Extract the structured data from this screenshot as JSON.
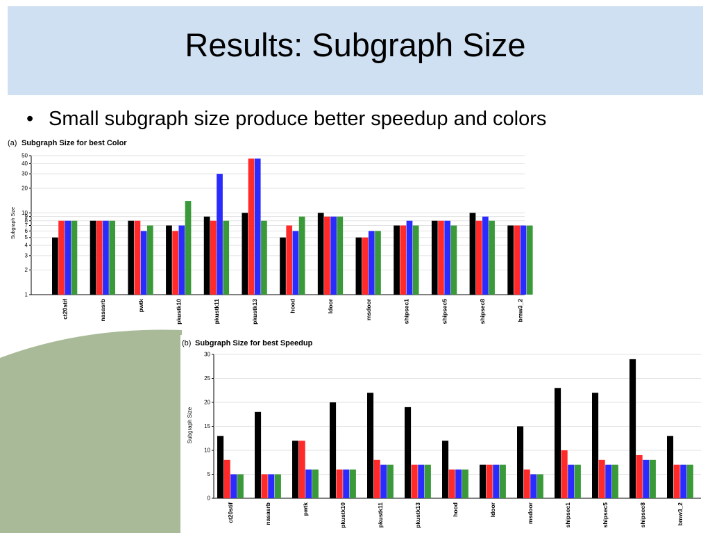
{
  "slide": {
    "title": "Results: Subgraph Size",
    "bullet": "Small subgraph size produce better speedup and colors"
  },
  "colors": {
    "title_bg": "#cfe0f2",
    "deco": "#a9ba98",
    "series": [
      "#000000",
      "#ff2a2a",
      "#2b2bff",
      "#3a9a3a"
    ]
  },
  "chart_data": [
    {
      "type": "bar",
      "panel_label": "(a)",
      "title": "Subgraph Size for best Color",
      "ylabel": "Subgraph Size",
      "yscale": "log",
      "ylim": [
        1,
        50
      ],
      "yticks": [
        1,
        2,
        3,
        4,
        5,
        6,
        7,
        8,
        9,
        10,
        20,
        30,
        40,
        50
      ],
      "grid": true,
      "categories": [
        "ct20stif",
        "nasasrb",
        "pwtk",
        "pkustk10",
        "pkustk11",
        "pkustk13",
        "hood",
        "ldoor",
        "msdoor",
        "shipsec1",
        "shipsec5",
        "shipsec8",
        "bmw3_2"
      ],
      "series": [
        {
          "values": [
            5,
            8,
            8,
            7,
            9,
            10,
            5,
            10,
            5,
            7,
            8,
            10,
            7
          ]
        },
        {
          "values": [
            8,
            8,
            8,
            6,
            8,
            46,
            7,
            9,
            5,
            7,
            8,
            8,
            7
          ]
        },
        {
          "values": [
            8,
            8,
            6,
            7,
            30,
            46,
            6,
            9,
            6,
            8,
            8,
            9,
            7
          ]
        },
        {
          "values": [
            8,
            8,
            7,
            14,
            8,
            8,
            9,
            9,
            6,
            7,
            7,
            8,
            7
          ]
        }
      ]
    },
    {
      "type": "bar",
      "panel_label": "(b)",
      "title": "Subgraph Size for best Speedup",
      "ylabel": "Subgraph Size",
      "yscale": "linear",
      "ylim": [
        0,
        30
      ],
      "yticks": [
        0,
        5,
        10,
        15,
        20,
        25,
        30
      ],
      "grid": true,
      "categories": [
        "ct20stif",
        "nasasrb",
        "pwtk",
        "pkustk10",
        "pkustk11",
        "pkustk13",
        "hood",
        "ldoor",
        "msdoor",
        "shipsec1",
        "shipsec5",
        "shipsec8",
        "bmw3_2"
      ],
      "series": [
        {
          "values": [
            13,
            18,
            12,
            20,
            22,
            19,
            12,
            7,
            15,
            23,
            22,
            29,
            13
          ]
        },
        {
          "values": [
            8,
            5,
            12,
            6,
            8,
            7,
            6,
            7,
            6,
            10,
            8,
            9,
            7
          ]
        },
        {
          "values": [
            5,
            5,
            6,
            6,
            7,
            7,
            6,
            7,
            5,
            7,
            7,
            8,
            7
          ]
        },
        {
          "values": [
            5,
            5,
            6,
            6,
            7,
            7,
            6,
            7,
            5,
            7,
            7,
            8,
            7
          ]
        }
      ]
    }
  ]
}
